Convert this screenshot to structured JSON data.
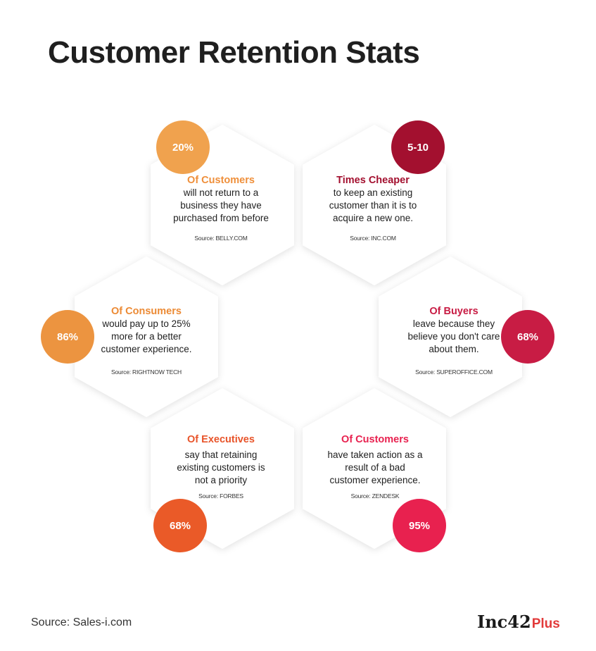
{
  "title": "Customer Retention Stats",
  "stats": [
    {
      "value": "20%",
      "heading": "Of Customers",
      "lines": [
        "will not return to a",
        "business they have",
        "purchased from before"
      ],
      "source": "Source: BELLY.COM",
      "color": "#f0a24e",
      "heading_color": "#ef8f3a"
    },
    {
      "value": "5-10",
      "heading": "Times Cheaper",
      "lines": [
        "to keep an existing",
        "customer than it is to",
        "acquire a new one."
      ],
      "source": "Source: INC.COM",
      "color": "#a3102f",
      "heading_color": "#a3102f"
    },
    {
      "value": "86%",
      "heading": "Of Consumers",
      "lines": [
        "would pay up to 25%",
        "more for a better",
        "customer experience."
      ],
      "source": "Source: RIGHTNOW TECH",
      "color": "#ec9440",
      "heading_color": "#ec8a34"
    },
    {
      "value": "68%",
      "heading": "Of Buyers",
      "lines": [
        "leave because they",
        "believe you don't care",
        "about them."
      ],
      "source": "Source: SUPEROFFICE.COM",
      "color": "#c81c44",
      "heading_color": "#c81c44"
    },
    {
      "value": "68%",
      "heading": "Of Executives",
      "lines": [
        "say that retaining",
        "existing customers is",
        "not a priority"
      ],
      "source": "Source: FORBES",
      "color": "#ea5a28",
      "heading_color": "#e8542a"
    },
    {
      "value": "95%",
      "heading": "Of Customers",
      "lines": [
        "have taken action as a",
        "result of a bad",
        "customer experience."
      ],
      "source": "Source: ZENDESK",
      "color": "#e8214f",
      "heading_color": "#e8214f"
    }
  ],
  "footer": {
    "source": "Source: Sales-i.com",
    "logo_main": "Inc42",
    "logo_plus": "Plus"
  }
}
